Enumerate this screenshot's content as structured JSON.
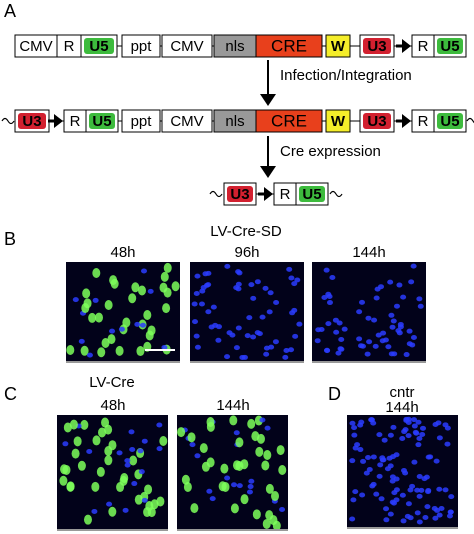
{
  "panel_a": {
    "label": "A",
    "construct_1": [
      "CMV",
      "R",
      "U5",
      "ppt",
      "CMV",
      "nls",
      "CRE",
      "W",
      "U3",
      "R",
      "U5"
    ],
    "step_1": "Infection/Integration",
    "construct_2": [
      "U3",
      "R",
      "U5",
      "ppt",
      "CMV",
      "nls",
      "CRE",
      "W",
      "U3",
      "R",
      "U5"
    ],
    "step_2": "Cre expression",
    "construct_3": [
      "U3",
      "R",
      "U5"
    ]
  },
  "panel_b": {
    "label": "B",
    "title": "LV-Cre-SD",
    "times": [
      "48h",
      "96h",
      "144h"
    ]
  },
  "panel_c": {
    "label": "C",
    "title": "LV-Cre",
    "times": [
      "48h",
      "144h"
    ]
  },
  "panel_d": {
    "label": "D",
    "title": "cntr",
    "time": "144h"
  }
}
